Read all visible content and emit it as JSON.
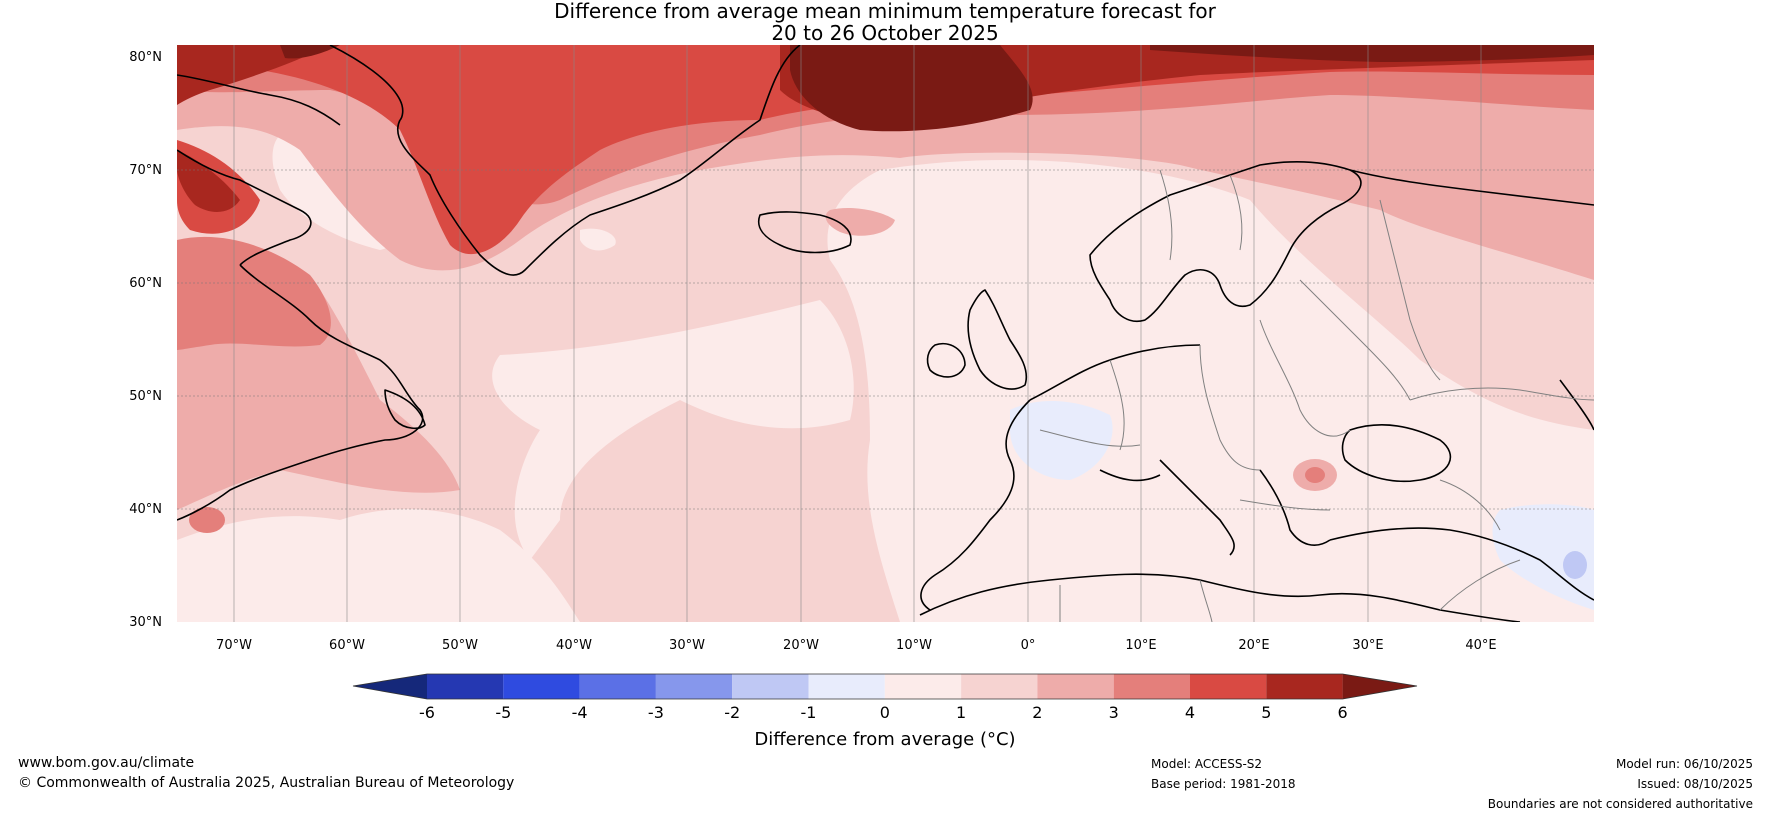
{
  "title_line1": "Difference from average mean minimum temperature forecast for",
  "title_line2": "20 to 26 October 2025",
  "lat_labels": [
    "80°N",
    "70°N",
    "60°N",
    "50°N",
    "40°N",
    "30°N"
  ],
  "lon_labels": [
    "70°W",
    "60°W",
    "50°W",
    "40°W",
    "30°W",
    "20°W",
    "10°W",
    "0°",
    "10°E",
    "20°E",
    "30°E",
    "40°E"
  ],
  "colorbar": {
    "title": "Difference from average (°C)",
    "ticks": [
      "-6",
      "-5",
      "-4",
      "-3",
      "-2",
      "-1",
      "0",
      "1",
      "2",
      "3",
      "4",
      "5",
      "6"
    ],
    "colors": [
      "#15287a",
      "#2538b2",
      "#2f4be0",
      "#5b70e6",
      "#8697ec",
      "#bfc8f4",
      "#e8ecfc",
      "#fcebea",
      "#f6d3d1",
      "#eeacaa",
      "#e47f7b",
      "#d94a43",
      "#a8271f",
      "#7a1a14"
    ]
  },
  "footer": {
    "url": "www.bom.gov.au/climate",
    "copyright": "© Commonwealth of Australia 2025, Australian Bureau of Meteorology",
    "model": "Model: ACCESS-S2",
    "base_period": "Base period: 1981-2018",
    "model_run": "Model run: 06/10/2025",
    "issued": "Issued: 08/10/2025",
    "disclaimer": "Boundaries are not considered authoritative"
  }
}
